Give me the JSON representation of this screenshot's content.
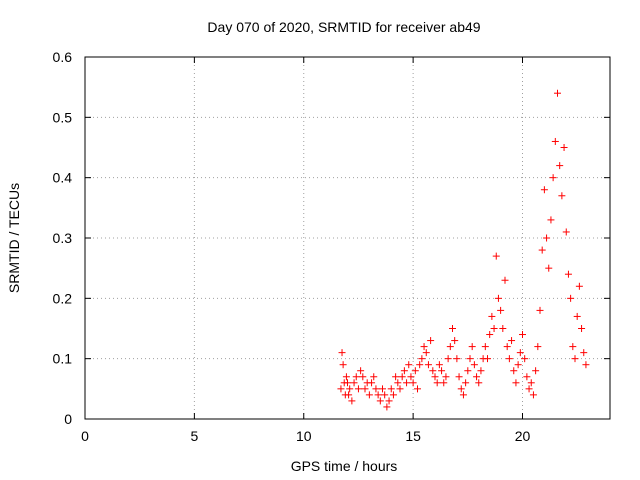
{
  "chart_data": {
    "type": "scatter",
    "title": "Day 070 of 2020, SRMTID for receiver ab49",
    "xlabel": "GPS time / hours",
    "ylabel": "SRMTID / TECUs",
    "xlim": [
      0,
      24
    ],
    "ylim": [
      0,
      0.6
    ],
    "xticks": [
      0,
      5,
      10,
      15,
      20
    ],
    "xtick_labels": [
      "0",
      "5",
      "10",
      "15",
      "20"
    ],
    "yticks": [
      0,
      0.1,
      0.2,
      0.3,
      0.4,
      0.5,
      0.6
    ],
    "ytick_labels": [
      "0",
      "0.1",
      "0.2",
      "0.3",
      "0.4",
      "0.5",
      "0.6"
    ],
    "grid": true,
    "marker": "+",
    "color": "#ff0000",
    "series": [
      {
        "name": "SRMTID",
        "points": [
          [
            11.7,
            0.05
          ],
          [
            11.75,
            0.11
          ],
          [
            11.8,
            0.09
          ],
          [
            11.85,
            0.06
          ],
          [
            11.9,
            0.04
          ],
          [
            11.95,
            0.07
          ],
          [
            12.0,
            0.06
          ],
          [
            12.05,
            0.04
          ],
          [
            12.1,
            0.05
          ],
          [
            12.2,
            0.03
          ],
          [
            12.3,
            0.06
          ],
          [
            12.4,
            0.07
          ],
          [
            12.5,
            0.05
          ],
          [
            12.6,
            0.08
          ],
          [
            12.7,
            0.07
          ],
          [
            12.8,
            0.05
          ],
          [
            12.9,
            0.06
          ],
          [
            13.0,
            0.04
          ],
          [
            13.1,
            0.06
          ],
          [
            13.2,
            0.07
          ],
          [
            13.3,
            0.05
          ],
          [
            13.4,
            0.04
          ],
          [
            13.5,
            0.03
          ],
          [
            13.6,
            0.05
          ],
          [
            13.7,
            0.04
          ],
          [
            13.8,
            0.02
          ],
          [
            13.9,
            0.03
          ],
          [
            14.0,
            0.05
          ],
          [
            14.1,
            0.04
          ],
          [
            14.2,
            0.07
          ],
          [
            14.3,
            0.06
          ],
          [
            14.4,
            0.05
          ],
          [
            14.5,
            0.07
          ],
          [
            14.6,
            0.08
          ],
          [
            14.7,
            0.06
          ],
          [
            14.8,
            0.09
          ],
          [
            14.9,
            0.07
          ],
          [
            15.0,
            0.06
          ],
          [
            15.1,
            0.08
          ],
          [
            15.2,
            0.05
          ],
          [
            15.3,
            0.09
          ],
          [
            15.4,
            0.1
          ],
          [
            15.5,
            0.12
          ],
          [
            15.6,
            0.11
          ],
          [
            15.7,
            0.09
          ],
          [
            15.8,
            0.13
          ],
          [
            15.9,
            0.08
          ],
          [
            16.0,
            0.07
          ],
          [
            16.1,
            0.06
          ],
          [
            16.2,
            0.09
          ],
          [
            16.3,
            0.08
          ],
          [
            16.4,
            0.06
          ],
          [
            16.5,
            0.07
          ],
          [
            16.6,
            0.1
          ],
          [
            16.7,
            0.12
          ],
          [
            16.8,
            0.15
          ],
          [
            16.9,
            0.13
          ],
          [
            17.0,
            0.1
          ],
          [
            17.1,
            0.07
          ],
          [
            17.2,
            0.05
          ],
          [
            17.3,
            0.04
          ],
          [
            17.4,
            0.06
          ],
          [
            17.5,
            0.08
          ],
          [
            17.6,
            0.1
          ],
          [
            17.7,
            0.12
          ],
          [
            17.8,
            0.09
          ],
          [
            17.9,
            0.07
          ],
          [
            18.0,
            0.06
          ],
          [
            18.1,
            0.08
          ],
          [
            18.2,
            0.1
          ],
          [
            18.3,
            0.12
          ],
          [
            18.4,
            0.1
          ],
          [
            18.5,
            0.14
          ],
          [
            18.6,
            0.17
          ],
          [
            18.7,
            0.15
          ],
          [
            18.8,
            0.27
          ],
          [
            18.9,
            0.2
          ],
          [
            19.0,
            0.18
          ],
          [
            19.1,
            0.15
          ],
          [
            19.2,
            0.23
          ],
          [
            19.3,
            0.12
          ],
          [
            19.4,
            0.1
          ],
          [
            19.5,
            0.13
          ],
          [
            19.6,
            0.08
          ],
          [
            19.7,
            0.06
          ],
          [
            19.8,
            0.09
          ],
          [
            19.9,
            0.11
          ],
          [
            20.0,
            0.14
          ],
          [
            20.1,
            0.1
          ],
          [
            20.2,
            0.07
          ],
          [
            20.3,
            0.05
          ],
          [
            20.4,
            0.06
          ],
          [
            20.5,
            0.04
          ],
          [
            20.6,
            0.08
          ],
          [
            20.7,
            0.12
          ],
          [
            20.8,
            0.18
          ],
          [
            20.9,
            0.28
          ],
          [
            21.0,
            0.38
          ],
          [
            21.1,
            0.3
          ],
          [
            21.2,
            0.25
          ],
          [
            21.3,
            0.33
          ],
          [
            21.4,
            0.4
          ],
          [
            21.5,
            0.46
          ],
          [
            21.6,
            0.54
          ],
          [
            21.7,
            0.42
          ],
          [
            21.8,
            0.37
          ],
          [
            21.9,
            0.45
          ],
          [
            22.0,
            0.31
          ],
          [
            22.1,
            0.24
          ],
          [
            22.2,
            0.2
          ],
          [
            22.3,
            0.12
          ],
          [
            22.4,
            0.1
          ],
          [
            22.5,
            0.17
          ],
          [
            22.6,
            0.22
          ],
          [
            22.7,
            0.15
          ],
          [
            22.8,
            0.11
          ],
          [
            22.9,
            0.09
          ]
        ]
      }
    ]
  }
}
